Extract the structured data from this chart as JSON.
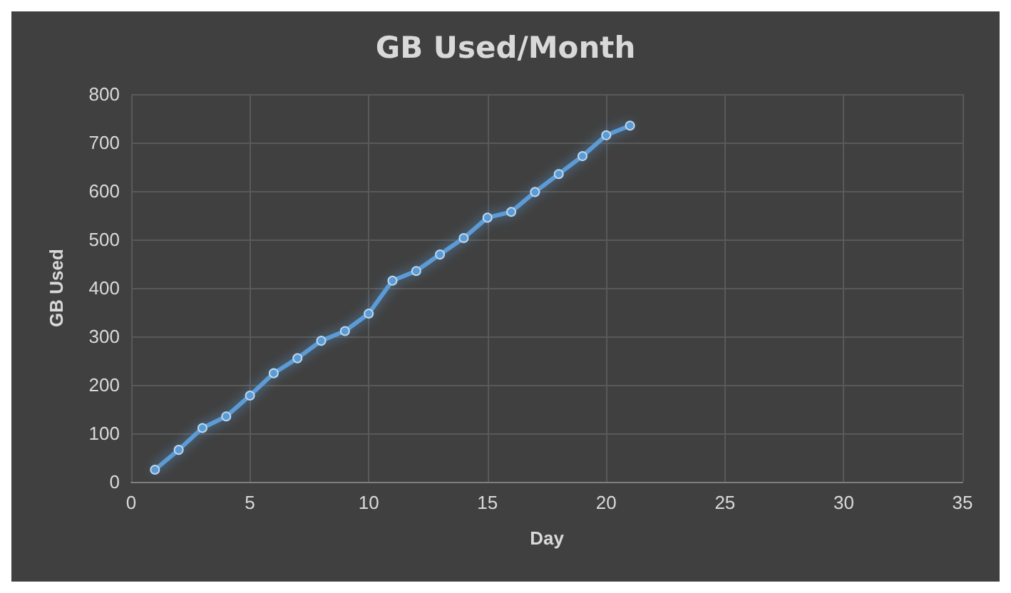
{
  "chart_data": {
    "type": "line",
    "title": "GB Used/Month",
    "xlabel": "Day",
    "ylabel": "GB Used",
    "x": [
      1,
      2,
      3,
      4,
      5,
      6,
      7,
      8,
      9,
      10,
      11,
      12,
      13,
      14,
      15,
      16,
      17,
      18,
      19,
      20,
      21
    ],
    "series": [
      {
        "color": "#5b9bd5",
        "values": [
          25,
          66,
          111,
          135,
          178,
          224,
          255,
          291,
          311,
          347,
          415,
          435,
          469,
          503,
          545,
          557,
          598,
          635,
          672,
          715,
          735
        ]
      }
    ],
    "xlim": [
      0,
      35
    ],
    "xticks": [
      0,
      5,
      10,
      15,
      20,
      25,
      30,
      35
    ],
    "ylim": [
      0,
      800
    ],
    "yticks": [
      0,
      100,
      200,
      300,
      400,
      500,
      600,
      700,
      800
    ],
    "grid": true,
    "marker": "circle",
    "line_style": "solid"
  }
}
